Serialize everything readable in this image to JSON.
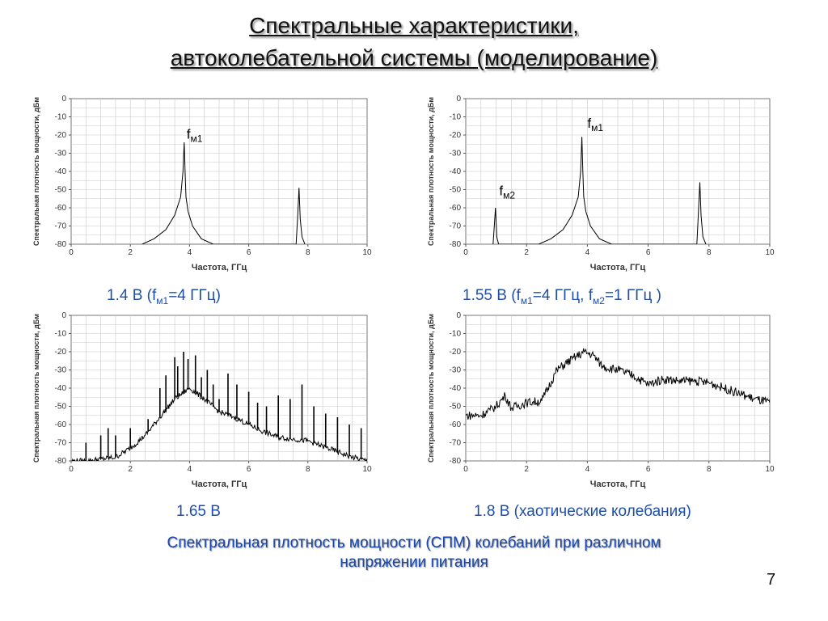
{
  "slide": {
    "title_line1": "Спектральные характеристики,",
    "title_line2": "автоколебательной системы (моделирование)",
    "footer_line1": "Спектральная плотность мощности  (СПМ) колебаний при различном",
    "footer_line2": "напряжении питания",
    "page_number": "7",
    "colors": {
      "caption": "#1f4ea8",
      "grid": "#c8c8c8",
      "trace": "#000000"
    }
  },
  "captions": [
    {
      "prefix": "1.4 В (f",
      "sub1": "м1",
      "rest": "=4 ГГц)"
    },
    {
      "prefix": "1.55 В (f",
      "sub1": "м1",
      "mid": "=4 ГГц, f",
      "sub2": "м2",
      "rest": "=1 ГГц )"
    },
    {
      "text": "1.65 В"
    },
    {
      "text": "1.8 В (хаотические колебания)"
    }
  ],
  "chart_data": [
    {
      "type": "line",
      "xlabel": "Частота, ГГц",
      "ylabel": "Спектральная плотность мощности, дБм",
      "xlim": [
        0,
        10
      ],
      "ylim": [
        -80,
        0
      ],
      "xticks": [
        0,
        2,
        4,
        6,
        8,
        10
      ],
      "yticks": [
        0,
        -10,
        -20,
        -30,
        -40,
        -50,
        -60,
        -70,
        -80
      ],
      "grid": true,
      "annotations": [
        {
          "text": "f",
          "sub": "м1",
          "x": 3.9,
          "y": -22
        }
      ],
      "series": [
        {
          "x": [
            2.4,
            2.8,
            3.2,
            3.5,
            3.7,
            3.78,
            3.82,
            3.85,
            3.88,
            3.95,
            4.1,
            4.4,
            4.8,
            7.6,
            7.65,
            7.7,
            7.74,
            7.8,
            7.9
          ],
          "y": [
            -80,
            -77,
            -72,
            -64,
            -54,
            -40,
            -24,
            -40,
            -54,
            -62,
            -70,
            -77,
            -80,
            -80,
            -66,
            -49,
            -66,
            -76,
            -80
          ]
        }
      ]
    },
    {
      "type": "line",
      "xlabel": "Частота, ГГц",
      "ylabel": "Спектральная плотность мощности, дБм",
      "xlim": [
        0,
        10
      ],
      "ylim": [
        -80,
        0
      ],
      "xticks": [
        0,
        2,
        4,
        6,
        8,
        10
      ],
      "yticks": [
        0,
        -10,
        -20,
        -30,
        -40,
        -50,
        -60,
        -70,
        -80
      ],
      "grid": true,
      "annotations": [
        {
          "text": "f",
          "sub": "м1",
          "x": 4.0,
          "y": -16
        },
        {
          "text": "f",
          "sub": "м2",
          "x": 1.1,
          "y": -53
        }
      ],
      "series": [
        {
          "x": [
            0.9,
            0.98,
            1.02,
            1.08,
            2.4,
            2.8,
            3.2,
            3.5,
            3.7,
            3.78,
            3.82,
            3.85,
            3.88,
            3.95,
            4.1,
            4.4,
            4.8,
            7.6,
            7.65,
            7.7,
            7.74,
            7.8,
            7.9
          ],
          "y": [
            -80,
            -60,
            -76,
            -80,
            -80,
            -77,
            -72,
            -64,
            -54,
            -40,
            -21,
            -40,
            -54,
            -62,
            -70,
            -77,
            -80,
            -80,
            -64,
            -46,
            -64,
            -76,
            -80
          ]
        }
      ]
    },
    {
      "type": "line",
      "xlabel": "Частота, ГГц",
      "ylabel": "Спектральная плотность мощности, дБм",
      "xlim": [
        0,
        10
      ],
      "ylim": [
        -80,
        0
      ],
      "xticks": [
        0,
        2,
        4,
        6,
        8,
        10
      ],
      "yticks": [
        0,
        -10,
        -20,
        -30,
        -40,
        -50,
        -60,
        -70,
        -80
      ],
      "grid": true,
      "series": [
        {
          "x": [
            0.0,
            0.5,
            1.0,
            1.5,
            2.0,
            2.5,
            3.0,
            3.5,
            4.0,
            4.5,
            5.0,
            5.5,
            6.0,
            6.5,
            7.0,
            7.5,
            8.0,
            8.5,
            9.0,
            9.5,
            10.0
          ],
          "y": [
            -80,
            -80,
            -79,
            -78,
            -73,
            -66,
            -56,
            -46,
            -40,
            -46,
            -53,
            -56,
            -60,
            -64,
            -67,
            -68,
            -69,
            -72,
            -75,
            -78,
            -80
          ],
          "spikes": [
            {
              "x": 0.5,
              "y": -70
            },
            {
              "x": 1.0,
              "y": -66
            },
            {
              "x": 1.25,
              "y": -62
            },
            {
              "x": 1.5,
              "y": -66
            },
            {
              "x": 2.0,
              "y": -62
            },
            {
              "x": 2.6,
              "y": -57
            },
            {
              "x": 3.0,
              "y": -40
            },
            {
              "x": 3.2,
              "y": -33
            },
            {
              "x": 3.5,
              "y": -23
            },
            {
              "x": 3.6,
              "y": -28
            },
            {
              "x": 3.8,
              "y": -20
            },
            {
              "x": 3.95,
              "y": -24
            },
            {
              "x": 4.2,
              "y": -22
            },
            {
              "x": 4.4,
              "y": -34
            },
            {
              "x": 4.6,
              "y": -30
            },
            {
              "x": 4.8,
              "y": -38
            },
            {
              "x": 5.0,
              "y": -46
            },
            {
              "x": 5.3,
              "y": -32
            },
            {
              "x": 5.6,
              "y": -38
            },
            {
              "x": 6.0,
              "y": -42
            },
            {
              "x": 6.3,
              "y": -48
            },
            {
              "x": 6.6,
              "y": -50
            },
            {
              "x": 7.0,
              "y": -44
            },
            {
              "x": 7.4,
              "y": -46
            },
            {
              "x": 7.8,
              "y": -38
            },
            {
              "x": 8.2,
              "y": -50
            },
            {
              "x": 8.6,
              "y": -54
            },
            {
              "x": 9.0,
              "y": -56
            },
            {
              "x": 9.4,
              "y": -60
            },
            {
              "x": 9.8,
              "y": -62
            }
          ]
        }
      ]
    },
    {
      "type": "line",
      "xlabel": "Частота, ГГц",
      "ylabel": "Спектральная плотность мощности, дБм",
      "xlim": [
        0,
        10
      ],
      "ylim": [
        -80,
        0
      ],
      "xticks": [
        0,
        2,
        4,
        6,
        8,
        10
      ],
      "yticks": [
        0,
        -10,
        -20,
        -30,
        -40,
        -50,
        -60,
        -70,
        -80
      ],
      "grid": true,
      "series": [
        {
          "x": [
            0.0,
            0.5,
            0.8,
            1.0,
            1.3,
            1.5,
            2.0,
            2.5,
            3.0,
            3.5,
            3.9,
            4.2,
            4.5,
            5.0,
            5.5,
            6.0,
            6.5,
            7.0,
            7.5,
            8.0,
            8.5,
            9.0,
            9.5,
            10.0
          ],
          "y": [
            -55,
            -55,
            -52,
            -50,
            -44,
            -51,
            -48,
            -47,
            -30,
            -24,
            -20,
            -22,
            -28,
            -30,
            -33,
            -38,
            -35,
            -36,
            -36,
            -37,
            -40,
            -43,
            -46,
            -48
          ]
        }
      ]
    }
  ]
}
